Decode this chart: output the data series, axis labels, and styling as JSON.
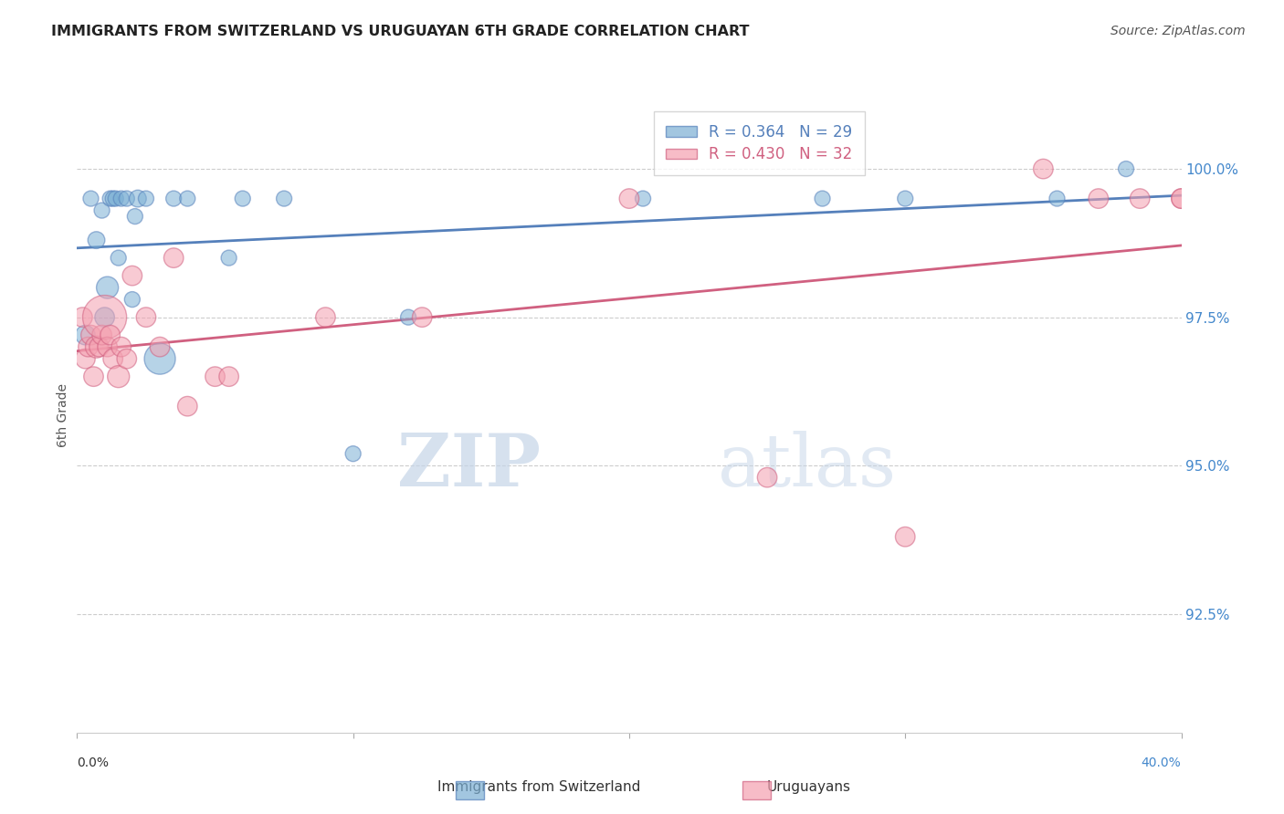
{
  "title": "IMMIGRANTS FROM SWITZERLAND VS URUGUAYAN 6TH GRADE CORRELATION CHART",
  "source": "Source: ZipAtlas.com",
  "ylabel": "6th Grade",
  "ytick_values": [
    92.5,
    95.0,
    97.5,
    100.0
  ],
  "xlim": [
    0.0,
    40.0
  ],
  "ylim": [
    90.5,
    101.2
  ],
  "legend_blue_R": "R = 0.364",
  "legend_blue_N": "N = 29",
  "legend_pink_R": "R = 0.430",
  "legend_pink_N": "N = 32",
  "legend_label_blue": "Immigrants from Switzerland",
  "legend_label_pink": "Uruguayans",
  "blue_color": "#7BAFD4",
  "pink_color": "#F4A0B0",
  "blue_line_color": "#5580BB",
  "pink_line_color": "#D06080",
  "watermark_zip": "ZIP",
  "watermark_atlas": "atlas",
  "blue_x": [
    0.3,
    0.5,
    0.7,
    0.9,
    1.0,
    1.1,
    1.2,
    1.3,
    1.4,
    1.5,
    1.6,
    1.8,
    2.0,
    2.1,
    2.2,
    2.5,
    3.0,
    3.5,
    4.0,
    5.5,
    6.0,
    7.5,
    10.0,
    12.0,
    20.5,
    27.0,
    30.0,
    35.5,
    38.0
  ],
  "blue_y": [
    97.2,
    99.5,
    98.8,
    99.3,
    97.5,
    98.0,
    99.5,
    99.5,
    99.5,
    98.5,
    99.5,
    99.5,
    97.8,
    99.2,
    99.5,
    99.5,
    96.8,
    99.5,
    99.5,
    98.5,
    99.5,
    99.5,
    95.2,
    97.5,
    99.5,
    99.5,
    99.5,
    99.5,
    100.0
  ],
  "blue_sizes": [
    80,
    50,
    60,
    50,
    80,
    100,
    50,
    50,
    50,
    50,
    50,
    50,
    50,
    50,
    60,
    50,
    200,
    50,
    50,
    50,
    50,
    50,
    50,
    50,
    50,
    50,
    50,
    50,
    50
  ],
  "pink_x": [
    0.2,
    0.3,
    0.4,
    0.5,
    0.6,
    0.7,
    0.8,
    0.9,
    1.0,
    1.1,
    1.2,
    1.3,
    1.5,
    1.6,
    1.8,
    2.0,
    2.5,
    3.0,
    3.5,
    4.0,
    5.0,
    5.5,
    9.0,
    12.5,
    20.0,
    25.0,
    30.0,
    35.0,
    37.0,
    38.5,
    40.0,
    40.0
  ],
  "pink_y": [
    97.5,
    96.8,
    97.0,
    97.2,
    96.5,
    97.0,
    97.0,
    97.2,
    97.5,
    97.0,
    97.2,
    96.8,
    96.5,
    97.0,
    96.8,
    98.2,
    97.5,
    97.0,
    98.5,
    96.0,
    96.5,
    96.5,
    97.5,
    97.5,
    99.5,
    94.8,
    93.8,
    100.0,
    99.5,
    99.5,
    99.5,
    99.5
  ],
  "pink_sizes": [
    80,
    80,
    80,
    80,
    80,
    100,
    80,
    80,
    400,
    80,
    80,
    80,
    100,
    80,
    80,
    80,
    80,
    80,
    80,
    80,
    80,
    80,
    80,
    80,
    80,
    80,
    80,
    80,
    80,
    80,
    80,
    80
  ]
}
